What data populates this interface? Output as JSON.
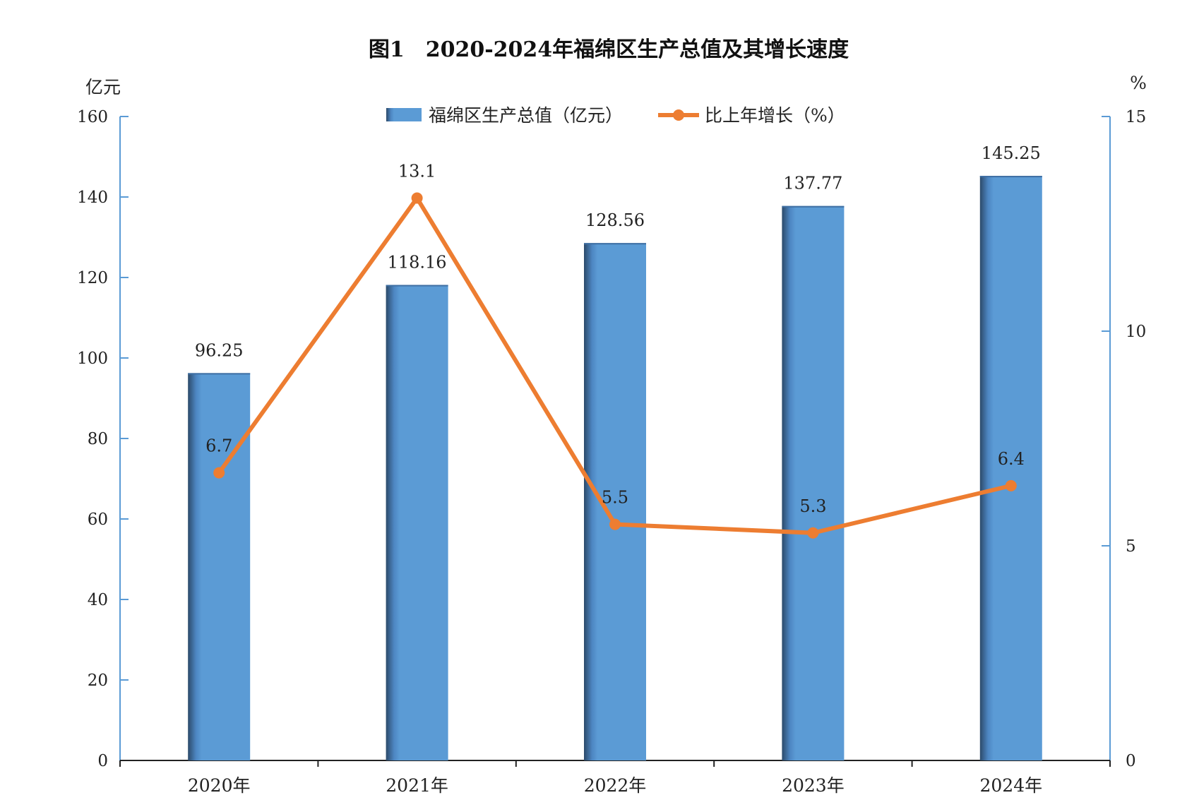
{
  "chart_data": {
    "type": "bar",
    "title": "图1　2020-2024年福绵区生产总值及其增长速度",
    "categories": [
      "2020年",
      "2021年",
      "2022年",
      "2023年",
      "2024年"
    ],
    "series": [
      {
        "name": "福绵区生产总值（亿元）",
        "type": "bar",
        "axis": "left",
        "values": [
          96.25,
          118.16,
          128.56,
          137.77,
          145.25
        ],
        "labels": [
          "96.25",
          "118.16",
          "128.56",
          "137.77",
          "145.25"
        ],
        "color": "#5B9BD5"
      },
      {
        "name": "比上年增长（%）",
        "type": "line",
        "axis": "right",
        "values": [
          6.7,
          13.1,
          5.5,
          5.3,
          6.4
        ],
        "labels": [
          "6.7",
          "13.1",
          "5.5",
          "5.3",
          "6.4"
        ],
        "color": "#ED7D31"
      }
    ],
    "y_left": {
      "unit": "亿元",
      "range": [
        0,
        160
      ],
      "ticks": [
        "0",
        "20",
        "40",
        "60",
        "80",
        "100",
        "120",
        "140",
        "160"
      ]
    },
    "y_right": {
      "unit": "%",
      "range": [
        0,
        15
      ],
      "ticks": [
        "0",
        "5",
        "10",
        "15"
      ]
    },
    "legend_position": "top-center",
    "grid": false
  }
}
